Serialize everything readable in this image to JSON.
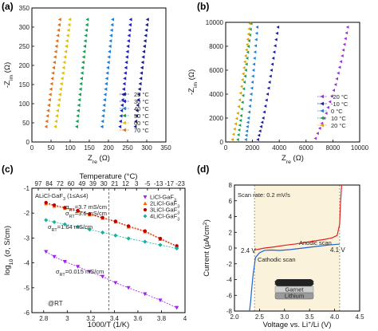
{
  "chart_data": [
    {
      "panel_label": "(a)",
      "type": "scatter",
      "xlabel": "Z_re (Ω)",
      "ylabel": "-Z_im (Ω)",
      "xlim": [
        0,
        350
      ],
      "ylim": [
        0,
        350
      ],
      "xticks": [
        0,
        50,
        100,
        150,
        200,
        250,
        300,
        350
      ],
      "yticks": [
        0,
        50,
        100,
        150,
        200,
        250,
        300,
        350
      ],
      "legend_position": "lower-right",
      "series": [
        {
          "name": "25 °C",
          "color": "#1a1a8c",
          "marker": "triangle-left",
          "x": [
            270,
            278,
            286,
            294,
            302
          ],
          "y": [
            40,
            110,
            180,
            250,
            320
          ]
        },
        {
          "name": "30 °C",
          "color": "#1f1fc8",
          "marker": "triangle-left",
          "x": [
            230,
            237,
            244,
            251,
            258
          ],
          "y": [
            40,
            110,
            180,
            250,
            320
          ]
        },
        {
          "name": "40 °C",
          "color": "#1e7fd8",
          "marker": "triangle-left",
          "x": [
            183,
            190,
            197,
            204,
            211
          ],
          "y": [
            40,
            110,
            180,
            250,
            320
          ]
        },
        {
          "name": "50 °C",
          "color": "#15a050",
          "marker": "triangle-left",
          "x": [
            117,
            124,
            131,
            138,
            145
          ],
          "y": [
            40,
            110,
            180,
            250,
            320
          ]
        },
        {
          "name": "60 °C",
          "color": "#e0c000",
          "marker": "triangle-left",
          "x": [
            61,
            71,
            81,
            90,
            99
          ],
          "y": [
            40,
            110,
            180,
            250,
            320
          ]
        },
        {
          "name": "70 °C",
          "color": "#e07020",
          "marker": "triangle-left",
          "x": [
            37,
            46,
            55,
            64,
            73
          ],
          "y": [
            40,
            110,
            180,
            250,
            320
          ]
        }
      ]
    },
    {
      "panel_label": "(b)",
      "type": "scatter",
      "xlabel": "Z_re (Ω)",
      "ylabel": "-Z_im (Ω)",
      "xlim": [
        0,
        10000
      ],
      "ylim": [
        0,
        10000
      ],
      "xticks": [
        0,
        2000,
        4000,
        6000,
        8000,
        10000
      ],
      "yticks": [
        0,
        2000,
        4000,
        6000,
        8000,
        10000
      ],
      "legend_position": "lower-right",
      "series": [
        {
          "name": "-20 °C",
          "color": "#9b30d0",
          "marker": "triangle-left",
          "x": [
            6700,
            7500,
            8200,
            8700,
            9100
          ],
          "y": [
            300,
            2400,
            4800,
            7200,
            9600
          ]
        },
        {
          "name": "-10 °C",
          "color": "#1a1aa0",
          "marker": "triangle-left",
          "x": [
            2400,
            2800,
            3200,
            3550,
            3900
          ],
          "y": [
            200,
            2000,
            4500,
            7000,
            9600
          ]
        },
        {
          "name": "0 °C",
          "color": "#1e7fd8",
          "marker": "triangle-left",
          "x": [
            1500,
            1700,
            1950,
            2150,
            2350
          ],
          "y": [
            200,
            2000,
            4500,
            7000,
            9600
          ]
        },
        {
          "name": "10 °C",
          "color": "#15a050",
          "marker": "triangle-left",
          "x": [
            900,
            1150,
            1400,
            1650,
            1900
          ],
          "y": [
            200,
            2200,
            5000,
            7500,
            9900
          ]
        },
        {
          "name": "20 °C",
          "color": "#e0a000",
          "marker": "triangle-left",
          "x": [
            500,
            900,
            1250,
            1550,
            1800
          ],
          "y": [
            200,
            2400,
            5200,
            7700,
            9900
          ]
        }
      ]
    },
    {
      "panel_label": "(c)",
      "type": "scatter",
      "title": "Temperature (°C)",
      "xlabel": "1000/T (1/K)",
      "ylabel": "log10 (σ, S/cm)",
      "xlim": [
        2.7,
        4.0
      ],
      "ylim": [
        -6,
        -1
      ],
      "xticks": [
        2.8,
        3.0,
        3.2,
        3.4,
        3.6,
        3.8,
        4.0
      ],
      "yticks": [
        -6,
        -5,
        -4,
        -3,
        -2,
        -1
      ],
      "top_ticks": [
        "97",
        "84",
        "72",
        "60",
        "49",
        "39",
        "30",
        "21",
        "12",
        "3",
        "-5",
        "-13",
        "-17",
        "-23"
      ],
      "legend_position": "top-right",
      "annotation_box": "ALiCl-GaF3 (1≤A≤4)",
      "rt_label": "@RT",
      "rt_x": 3.354,
      "series": [
        {
          "name": "LiCl-GaF3",
          "color": "#a020f0",
          "marker": "triangle-down",
          "x": [
            2.82,
            2.89,
            2.98,
            3.09,
            3.19,
            3.3,
            3.41,
            3.52,
            3.66,
            3.79,
            3.93
          ],
          "y": [
            -3.55,
            -3.75,
            -3.95,
            -4.15,
            -4.35,
            -4.55,
            -4.8,
            -5.0,
            -5.25,
            -5.5,
            -5.8
          ],
          "label": "σRT=0.015 mS/cm"
        },
        {
          "name": "2LiCl-GaF3",
          "color": "#ff6600",
          "marker": "triangle-up",
          "x": [
            2.82,
            2.89,
            2.98,
            3.09,
            3.19,
            3.3,
            3.41,
            3.52,
            3.66,
            3.79,
            3.93
          ],
          "y": [
            -1.62,
            -1.72,
            -1.8,
            -1.92,
            -2.06,
            -2.2,
            -2.35,
            -2.55,
            -2.75,
            -3.05,
            -3.35
          ],
          "label": "σRT=3.7 mS/cm"
        },
        {
          "name": "3LiCl-GaF3",
          "color": "#c00000",
          "marker": "circle",
          "x": [
            2.82,
            2.89,
            2.98,
            3.09,
            3.19,
            3.3,
            3.41,
            3.52,
            3.66,
            3.79,
            3.93
          ],
          "y": [
            -1.58,
            -1.68,
            -1.78,
            -1.9,
            -2.04,
            -2.18,
            -2.33,
            -2.52,
            -2.72,
            -3.02,
            -3.32
          ],
          "label": "σRT=3.6 mS/cm"
        },
        {
          "name": "4LiCl-GaF3",
          "color": "#18b0a0",
          "marker": "diamond",
          "x": [
            2.82,
            2.89,
            2.98,
            3.09,
            3.19,
            3.3,
            3.41,
            3.52,
            3.66,
            3.79,
            3.93
          ],
          "y": [
            -2.28,
            -2.36,
            -2.45,
            -2.55,
            -2.66,
            -2.78,
            -2.9,
            -3.02,
            -3.15,
            -3.28,
            -3.42
          ],
          "label": "σRT=1.64 mS/cm"
        }
      ]
    },
    {
      "panel_label": "(d)",
      "type": "line",
      "xlabel": "Voltage vs. Li+/Li (V)",
      "ylabel": "Current (μA/cm²)",
      "xlim": [
        2.0,
        4.5
      ],
      "ylim": [
        -8,
        8
      ],
      "xticks": [
        2.0,
        2.5,
        3.0,
        3.5,
        4.0,
        4.5
      ],
      "yticks": [
        -8,
        -6,
        -4,
        -2,
        0,
        2,
        4,
        6,
        8
      ],
      "shaded_window": [
        2.4,
        4.1
      ],
      "scan_rate": "Scan rate: 0.2 mV/s",
      "marker_low": "2.4 V",
      "marker_high": "4.1 V",
      "inset_labels": [
        "SS | LIS with C",
        "Garnet",
        "Lithium"
      ],
      "series": [
        {
          "name": "Anodic scan",
          "color": "#e02020",
          "x": [
            2.4,
            2.6,
            2.8,
            3.0,
            3.2,
            3.4,
            3.6,
            3.8,
            3.95,
            4.05,
            4.1,
            4.12,
            4.14
          ],
          "y": [
            -0.25,
            0.0,
            0.15,
            0.35,
            0.5,
            0.7,
            0.9,
            1.1,
            1.3,
            1.6,
            3.0,
            6.0,
            8.0
          ]
        },
        {
          "name": "Cathodic scan",
          "color": "#2060d0",
          "x": [
            2.3,
            2.32,
            2.34,
            2.37,
            2.42,
            2.5,
            2.6,
            2.75,
            2.9,
            3.1,
            3.3,
            3.5,
            3.7,
            3.9,
            4.1
          ],
          "y": [
            -8.0,
            -7.0,
            -5.5,
            -3.5,
            -1.2,
            -0.6,
            -0.3,
            -0.25,
            -0.3,
            -0.2,
            -0.05,
            0.1,
            0.25,
            0.4,
            0.5
          ]
        }
      ]
    }
  ]
}
